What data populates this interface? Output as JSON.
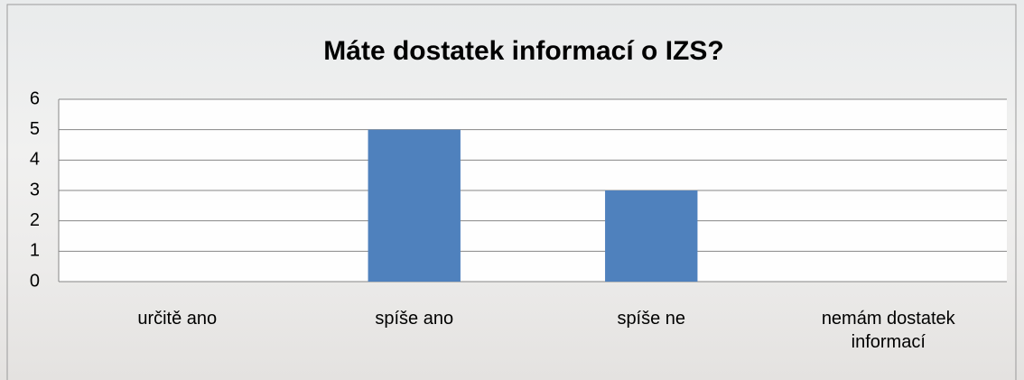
{
  "chart_data": {
    "type": "bar",
    "title": "Máte dostatek informací o IZS?",
    "categories": [
      "určitě ano",
      "spíše ano",
      "spíše ne",
      "nemám dostatek informací"
    ],
    "values": [
      0,
      5,
      3,
      0
    ],
    "color": "#4f81bd",
    "ylim": [
      0,
      6
    ],
    "yticks": [
      0,
      1,
      2,
      3,
      4,
      5,
      6
    ],
    "grid": true
  }
}
